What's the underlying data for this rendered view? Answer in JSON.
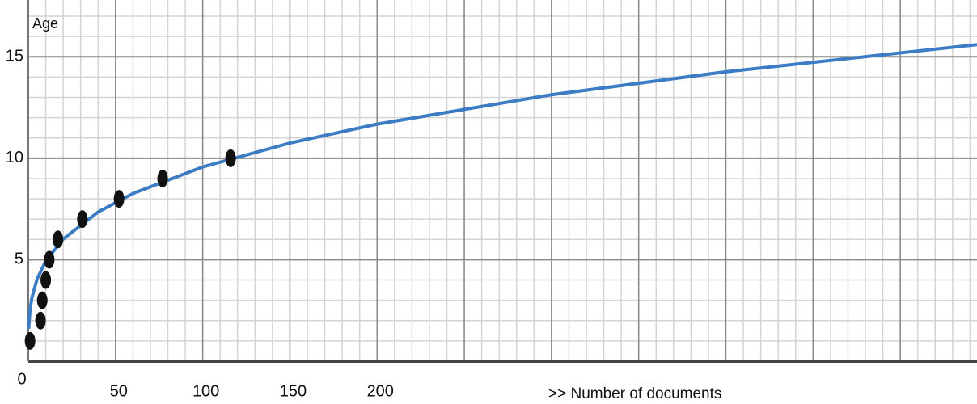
{
  "chart_data": {
    "type": "scatter",
    "y_label": "Age",
    "x_label": ">> Number of documents",
    "xlim": [
      0,
      544
    ],
    "ylim": [
      0,
      17.2
    ],
    "xticks": [
      0,
      50,
      100,
      150,
      200,
      {
        "value": 250,
        "label": null
      },
      {
        "value": 300,
        "label": null
      },
      {
        "value": 350,
        "label": null
      },
      {
        "value": 400,
        "label": null
      },
      {
        "value": 450,
        "label": null
      },
      {
        "value": 500,
        "label": null
      }
    ],
    "yticks": [
      5,
      10,
      15
    ],
    "grid": true,
    "minor_grid": {
      "x": 10,
      "y": 1
    },
    "series": [
      {
        "type": "scatter",
        "color": "#111111",
        "x": [
          1,
          7,
          8,
          10,
          12,
          17,
          31,
          52,
          77,
          116
        ],
        "values": [
          1,
          2,
          3,
          4,
          5,
          6,
          7,
          8,
          9,
          10
        ]
      },
      {
        "type": "line",
        "color": "#3b7cc4",
        "x": [
          0.2,
          1,
          2,
          5,
          10,
          20,
          40,
          60,
          100,
          150,
          200,
          300,
          400,
          544
        ],
        "values": [
          1.6,
          2.54,
          3.1,
          4.04,
          4.93,
          6.02,
          7.35,
          8.26,
          9.57,
          10.75,
          11.68,
          13.13,
          14.26,
          15.6
        ]
      }
    ]
  }
}
